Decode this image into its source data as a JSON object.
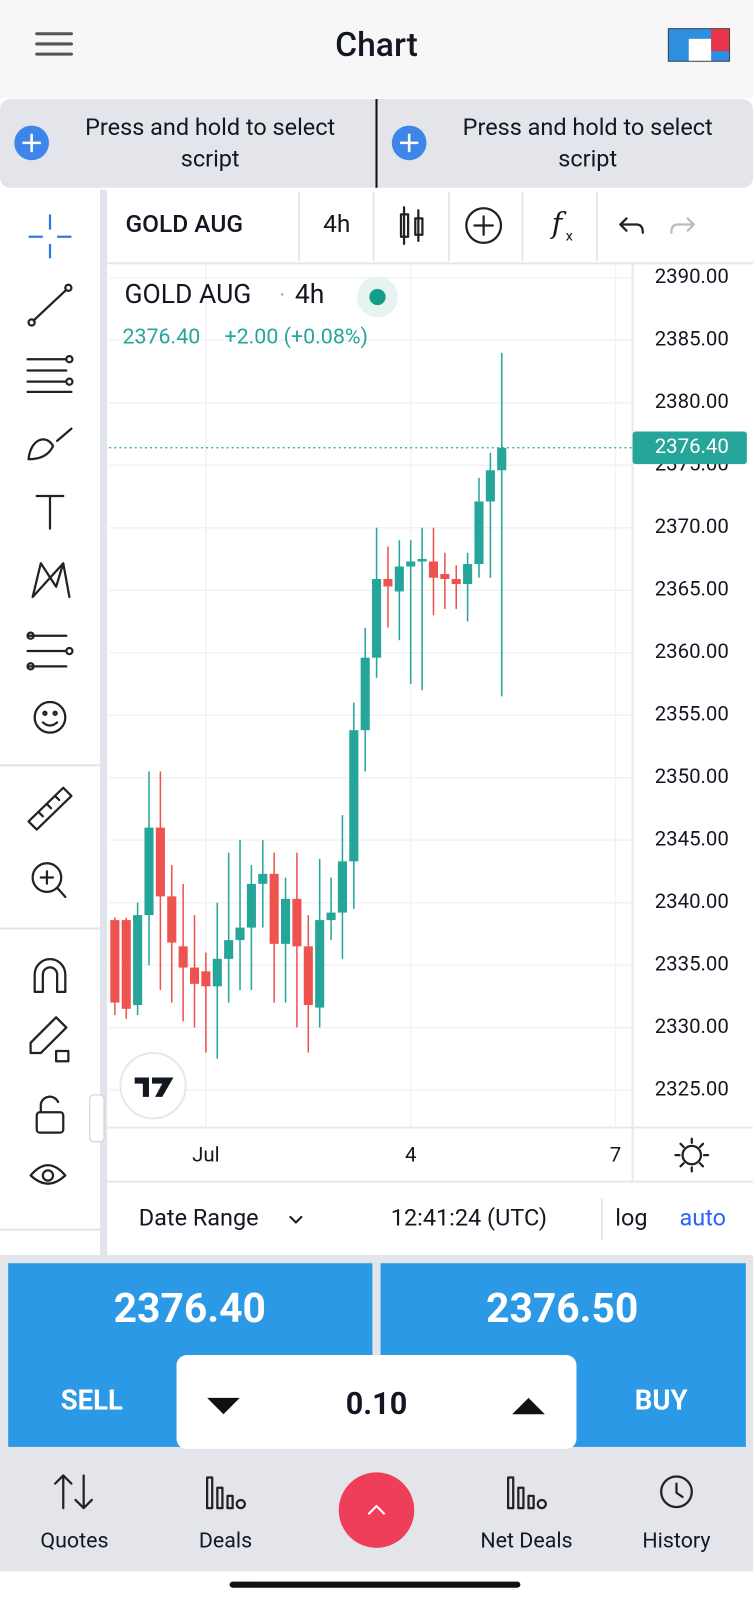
{
  "header": {
    "title": "Chart"
  },
  "script_bar": {
    "left": [
      "Press and hold to select",
      "script"
    ],
    "right": [
      "Press and hold to select",
      "script"
    ]
  },
  "toolbar": {
    "symbol": "GOLD AUG",
    "interval": "4h"
  },
  "legend": {
    "symbol": "GOLD AUG",
    "interval": "4h",
    "price": "2376.40",
    "change": "+2.00 (+0.08%)"
  },
  "chart_data": {
    "type": "candlestick",
    "categories": [
      null,
      null,
      null,
      null,
      null,
      null,
      null,
      null,
      "Jul",
      null,
      null,
      null,
      null,
      null,
      null,
      null,
      null,
      null,
      null,
      null,
      null,
      null,
      null,
      null,
      null,
      null,
      "4",
      null,
      null,
      null,
      null,
      null,
      null,
      null,
      null,
      null,
      null,
      null,
      null,
      null,
      null,
      null,
      null,
      null,
      "7",
      null
    ],
    "open": [
      2338.6,
      2338.6,
      2331.8,
      2339,
      2346,
      2340.5,
      2336.5,
      2334.8,
      2334.5,
      2333.3,
      2335.5,
      2337,
      2338,
      2341.5,
      2342.3,
      2336.7,
      2340.3,
      2336.5,
      2331.6,
      2338.6,
      2339.2,
      2343.3,
      2353.8,
      2359.6,
      2365.9,
      2364.9,
      2366.9,
      2367.3,
      2367.3,
      2366.3,
      2365.9,
      2365.5,
      2367.1,
      2372.1,
      2374.6,
      null,
      null,
      null,
      null,
      null,
      null,
      null,
      null,
      null,
      null,
      null
    ],
    "high": [
      2338.8,
      2338.8,
      2340,
      2350.5,
      2350.5,
      2343,
      2341.5,
      2339,
      2336,
      2340,
      2344,
      2345,
      2343,
      2345,
      2344,
      2342,
      2344,
      2339,
      2343.5,
      2342,
      2347,
      2356,
      2362,
      2370,
      2368.5,
      2369,
      2369,
      2370,
      2370,
      2368,
      2367,
      2368,
      2374,
      2376,
      2384,
      null,
      null,
      null,
      null,
      null,
      null,
      null,
      null,
      null,
      null,
      null
    ],
    "low": [
      2331,
      2330.7,
      2331,
      2335,
      2333,
      2332,
      2330.5,
      2330,
      2328,
      2327.5,
      2332,
      2333,
      2333,
      2338,
      2332,
      2332,
      2330,
      2328,
      2330,
      2337,
      2335.5,
      2339.5,
      2350.5,
      2358,
      2362,
      2361,
      2357.5,
      2357,
      2363,
      2363.5,
      2363.5,
      2362.5,
      2366,
      2366,
      2356.5,
      null,
      null,
      null,
      null,
      null,
      null,
      null,
      null,
      null,
      null,
      null
    ],
    "close": [
      2332,
      2331.5,
      2339,
      2346,
      2340.5,
      2336.8,
      2334.8,
      2333.5,
      2333.3,
      2335.5,
      2337,
      2338,
      2341.5,
      2342.3,
      2336.7,
      2340.3,
      2336.5,
      2331.8,
      2338.6,
      2339.2,
      2343.3,
      2353.8,
      2359.6,
      2365.9,
      2365.3,
      2366.9,
      2367.3,
      2367.5,
      2366,
      2365.9,
      2365.5,
      2367.1,
      2372.1,
      2374.6,
      2376.4,
      null,
      null,
      null,
      null,
      null,
      null,
      null,
      null,
      null,
      null,
      null
    ],
    "up_color": "#26a69a",
    "down_color": "#ef5350",
    "ylim": [
      2322,
      2391
    ],
    "yticks": [
      {
        "value": 2325,
        "label": "2325.00"
      },
      {
        "value": 2330,
        "label": "2330.00"
      },
      {
        "value": 2335,
        "label": "2335.00"
      },
      {
        "value": 2340,
        "label": "2340.00"
      },
      {
        "value": 2345,
        "label": "2345.00"
      },
      {
        "value": 2350,
        "label": "2350.00"
      },
      {
        "value": 2355,
        "label": "2355.00"
      },
      {
        "value": 2360,
        "label": "2360.00"
      },
      {
        "value": 2365,
        "label": "2365.00"
      },
      {
        "value": 2370,
        "label": "2370.00"
      },
      {
        "value": 2375,
        "label": "2375.00"
      },
      {
        "value": 2380,
        "label": "2380.00"
      },
      {
        "value": 2385,
        "label": "2385.00"
      },
      {
        "value": 2390,
        "label": "2390.00"
      }
    ],
    "last_price": {
      "value": 2376.4,
      "label": "2376.40"
    },
    "grid": true
  },
  "bottom_bar": {
    "date_range": "Date Range",
    "time": "12:41:24 (UTC)",
    "log": "log",
    "auto": "auto"
  },
  "trade": {
    "sell_price": "2376.40",
    "sell": "SELL",
    "buy_price": "2376.50",
    "buy": "BUY",
    "quantity": "0.10"
  },
  "nav": {
    "items": [
      "Quotes",
      "Deals",
      "Net Deals",
      "History"
    ]
  }
}
